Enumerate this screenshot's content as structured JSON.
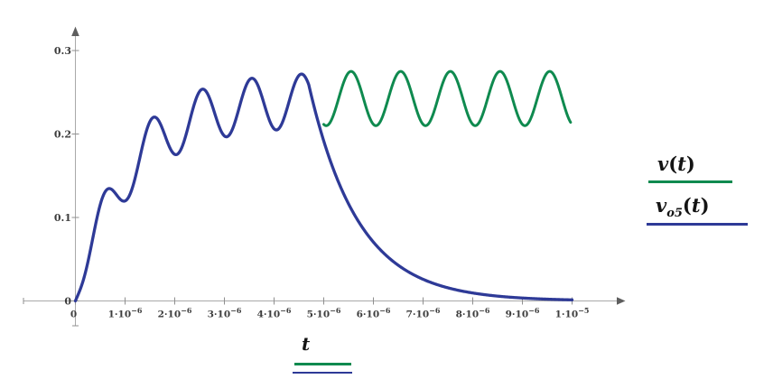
{
  "window": {
    "background": "#ffffff"
  },
  "axes": {
    "color": "#a9a9a9",
    "tick_color": "#8f8f8f",
    "arrow_color": "#5e5e5e",
    "label_color": "#3d3d3d"
  },
  "chart_data": {
    "type": "line",
    "title": "",
    "xlabel": "t",
    "ylabel": "",
    "xlim": [
      0,
      1.05e-05
    ],
    "ylim": [
      0,
      0.32
    ],
    "grid": false,
    "legend_position": "right",
    "x_ticks": [
      {
        "t": 0,
        "mant": "0",
        "exp": ""
      },
      {
        "t": 1e-06,
        "mant": "1·10",
        "exp": "−6"
      },
      {
        "t": 2e-06,
        "mant": "2·10",
        "exp": "−6"
      },
      {
        "t": 3e-06,
        "mant": "3·10",
        "exp": "−6"
      },
      {
        "t": 4e-06,
        "mant": "4·10",
        "exp": "−6"
      },
      {
        "t": 5e-06,
        "mant": "5·10",
        "exp": "−6"
      },
      {
        "t": 6e-06,
        "mant": "6·10",
        "exp": "−6"
      },
      {
        "t": 7e-06,
        "mant": "7·10",
        "exp": "−6"
      },
      {
        "t": 8e-06,
        "mant": "8·10",
        "exp": "−6"
      },
      {
        "t": 9e-06,
        "mant": "9·10",
        "exp": "−6"
      },
      {
        "t": 1e-05,
        "mant": "1·10",
        "exp": "−5"
      }
    ],
    "y_ticks": [
      {
        "v": 0,
        "label": "0"
      },
      {
        "v": 0.1,
        "label": "0.1"
      },
      {
        "v": 0.2,
        "label": "0.2"
      },
      {
        "v": 0.3,
        "label": "0.3"
      }
    ],
    "series": [
      {
        "name": "v(t)",
        "var": "v",
        "sub": "",
        "arg": "t",
        "color": "#0f8a4f",
        "model": {
          "kind": "sine",
          "mean": 0.2425,
          "amplitude": 0.0325,
          "period": 1e-06,
          "peak_time": 5.5e-07,
          "t_start": 5e-06,
          "t_end": 9.97e-06
        },
        "steady_peak_value": 0.275,
        "steady_trough_value": 0.21,
        "peak_times": [
          5.55e-06,
          6.55e-06,
          7.55e-06,
          8.55e-06,
          9.55e-06
        ],
        "trough_times": [
          6.05e-06,
          7.05e-06,
          8.05e-06,
          9.05e-06
        ]
      },
      {
        "name": "v_o5(t)",
        "var": "v",
        "sub": "o5",
        "arg": "t",
        "color": "#2e3a97",
        "model": {
          "kind": "charged_oscillation_with_decay",
          "mean_final": 0.2425,
          "mean_tau": 1.05e-06,
          "amp_final": 0.0325,
          "amp_tau": 3.5e-07,
          "period": 1e-06,
          "peak_time": 5.5e-07,
          "decay_v_ref": 0.272,
          "decay_t_ref": 4.65e-06,
          "decay_tau": 1e-06,
          "t_start": 0,
          "t_end": 1e-05
        },
        "key_points": [
          [
            0,
            0
          ],
          [
            6.9e-07,
            0.156
          ],
          [
            1.03e-06,
            0.131
          ],
          [
            1.63e-06,
            0.228
          ],
          [
            2.04e-06,
            0.18
          ],
          [
            2.56e-06,
            0.257
          ],
          [
            3e-06,
            0.199
          ],
          [
            3.53e-06,
            0.269
          ],
          [
            4e-06,
            0.208
          ],
          [
            4.55e-06,
            0.272
          ],
          [
            5e-06,
            0.196
          ],
          [
            6e-06,
            0.064
          ],
          [
            7e-06,
            0.023
          ],
          [
            8e-06,
            0.009
          ],
          [
            9e-06,
            0.003
          ],
          [
            1e-05,
            0.001
          ]
        ]
      }
    ]
  }
}
